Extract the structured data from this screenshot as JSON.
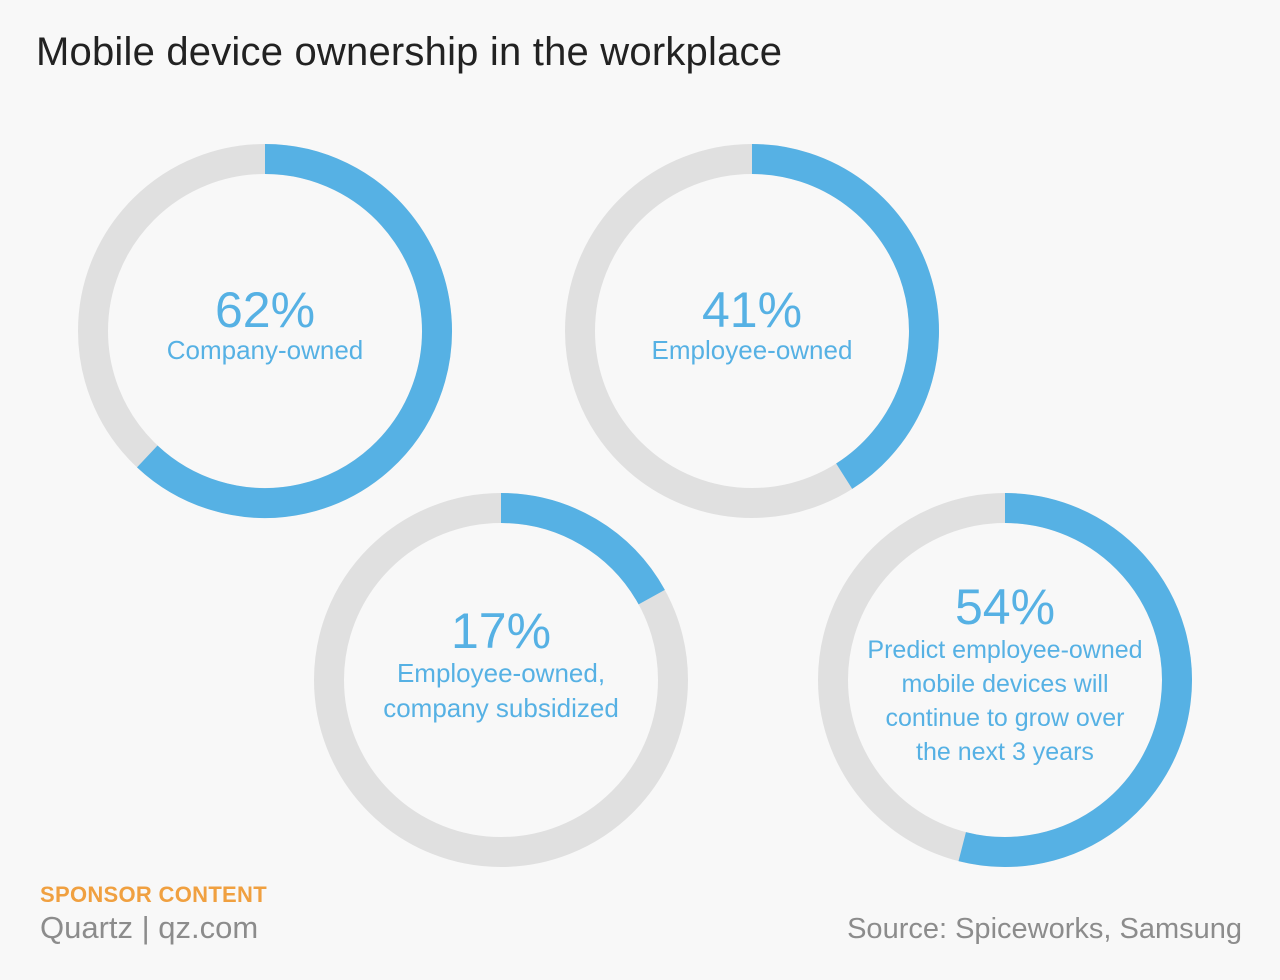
{
  "title": "Mobile device ownership in the workplace",
  "colors": {
    "accent": "#56b1e4",
    "track": "#e0e0e0",
    "sponsor": "#f0a040",
    "muted": "#8c8c8c"
  },
  "chart_data": [
    {
      "type": "pie",
      "value": 62,
      "value_label": "62%",
      "label_lines": [
        "Company-owned"
      ]
    },
    {
      "type": "pie",
      "value": 41,
      "value_label": "41%",
      "label_lines": [
        "Employee-owned"
      ]
    },
    {
      "type": "pie",
      "value": 17,
      "value_label": "17%",
      "label_lines": [
        "Employee-owned,",
        "company subsidized"
      ]
    },
    {
      "type": "pie",
      "value": 54,
      "value_label": "54%",
      "label_lines": [
        "Predict employee-owned",
        "mobile devices will",
        "continue to grow over",
        "the next 3 years"
      ]
    }
  ],
  "footer": {
    "sponsor": "SPONSOR CONTENT",
    "brand": "Quartz | qz.com",
    "source": "Source: Spiceworks, Samsung"
  }
}
